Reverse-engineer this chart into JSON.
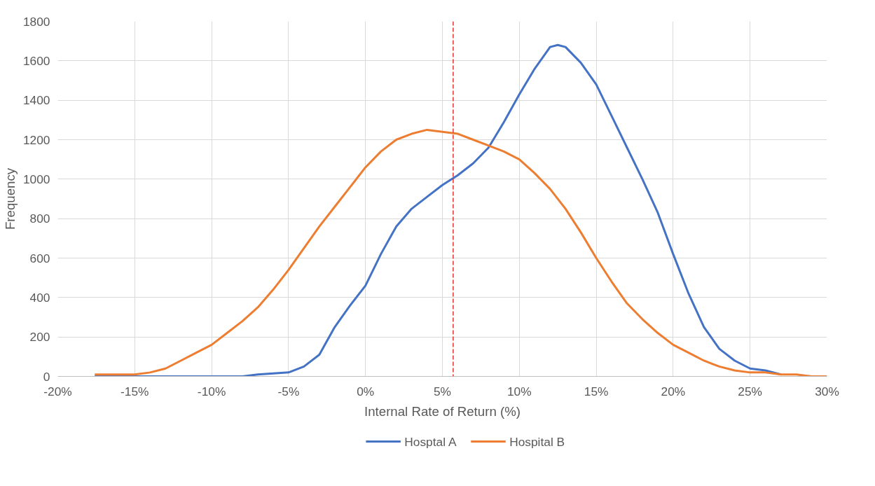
{
  "chart_data": {
    "type": "line",
    "xlabel": "Internal Rate of Return (%)",
    "ylabel": "Frequency",
    "xlim": [
      -20,
      30
    ],
    "xticks": [
      {
        "value": -20,
        "label": "-20%"
      },
      {
        "value": -15,
        "label": "-15%"
      },
      {
        "value": -10,
        "label": "-10%"
      },
      {
        "value": -5,
        "label": "-5%"
      },
      {
        "value": 0,
        "label": "0%"
      },
      {
        "value": 5,
        "label": "5%"
      },
      {
        "value": 10,
        "label": "10%"
      },
      {
        "value": 15,
        "label": "15%"
      },
      {
        "value": 20,
        "label": "20%"
      },
      {
        "value": 25,
        "label": "25%"
      },
      {
        "value": 30,
        "label": "30%"
      }
    ],
    "ylim": [
      0,
      1800
    ],
    "yticks": [
      0,
      200,
      400,
      600,
      800,
      1000,
      1200,
      1400,
      1600,
      1800
    ],
    "grid": true,
    "legend": "bottom",
    "marker": "none",
    "line_style": "solid",
    "ref_lines": [
      {
        "axis": "x",
        "value": 5.7,
        "label": null,
        "color": "#e0312f",
        "line_style": "dashed"
      }
    ],
    "series": [
      {
        "name": "Hosptal A",
        "color": "#4472c4",
        "x": [
          -17.6,
          -12,
          -9,
          -8,
          -7,
          -5,
          -4,
          -3,
          -2,
          -1,
          0,
          1,
          2,
          3,
          4,
          5,
          6,
          7,
          8,
          9,
          10,
          11,
          12,
          12.5,
          13,
          14,
          15,
          16,
          17,
          18,
          19,
          20,
          21,
          22,
          23,
          24,
          25,
          26,
          27
        ],
        "values": [
          0,
          0,
          0,
          0,
          10,
          20,
          50,
          110,
          250,
          360,
          460,
          620,
          760,
          850,
          910,
          970,
          1020,
          1080,
          1160,
          1290,
          1430,
          1560,
          1670,
          1680,
          1670,
          1590,
          1480,
          1320,
          1160,
          1000,
          830,
          620,
          420,
          250,
          140,
          80,
          40,
          30,
          10
        ]
      },
      {
        "name": "Hospital B",
        "color": "#ed7d31",
        "x": [
          -17.6,
          -16,
          -15,
          -14,
          -13,
          -12,
          -11,
          -10,
          -9,
          -8,
          -7,
          -6,
          -5,
          -4,
          -3,
          -2,
          -1,
          0,
          1,
          2,
          3,
          4,
          5,
          6,
          7,
          8,
          9,
          10,
          11,
          12,
          13,
          14,
          15,
          16,
          17,
          18,
          19,
          20,
          21,
          22,
          23,
          24,
          25,
          26,
          27,
          28,
          29,
          30
        ],
        "values": [
          10,
          10,
          10,
          20,
          40,
          80,
          120,
          160,
          220,
          280,
          350,
          440,
          540,
          650,
          760,
          860,
          960,
          1060,
          1140,
          1200,
          1230,
          1250,
          1240,
          1230,
          1200,
          1170,
          1140,
          1100,
          1030,
          950,
          850,
          730,
          600,
          480,
          370,
          290,
          220,
          160,
          120,
          80,
          50,
          30,
          20,
          20,
          10,
          10,
          0,
          0
        ]
      }
    ]
  }
}
